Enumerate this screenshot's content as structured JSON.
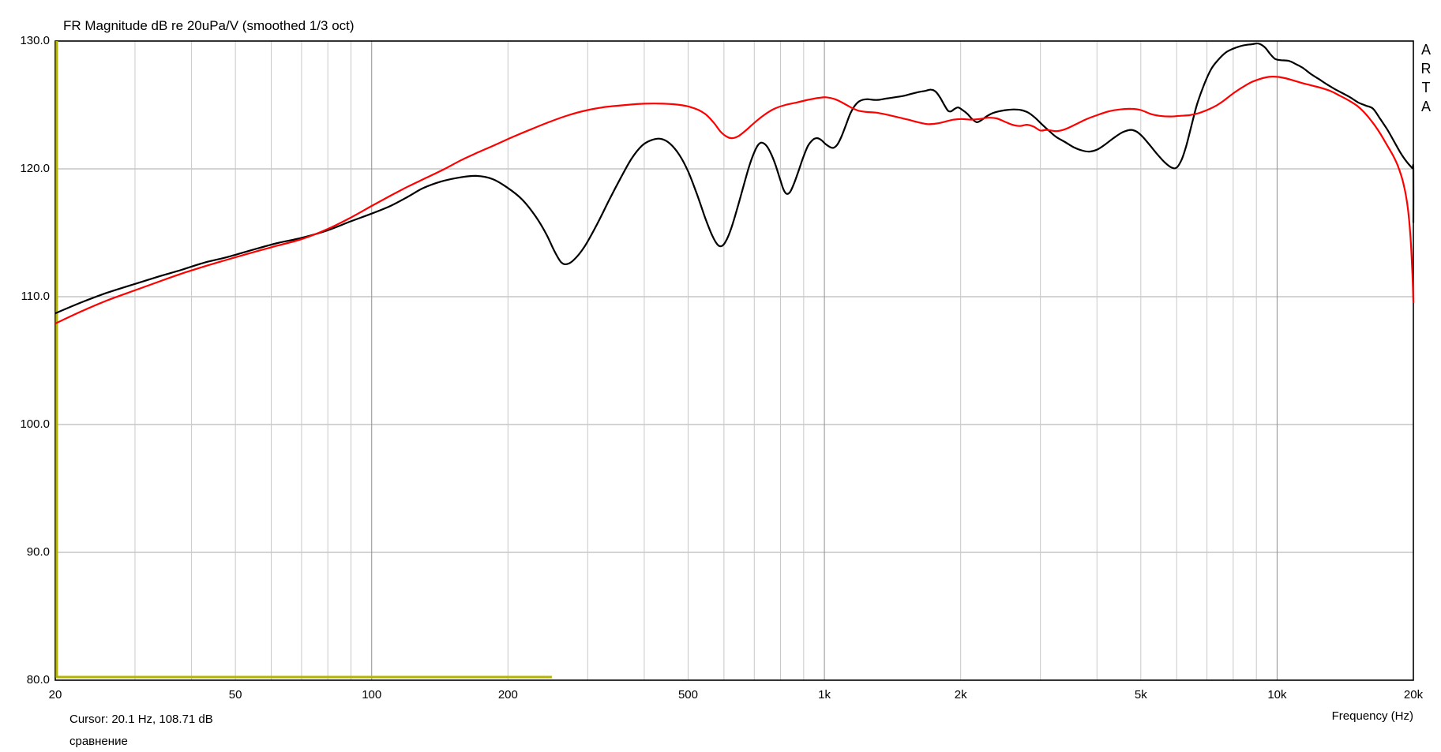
{
  "title": "FR Magnitude dB re 20uPa/V (smoothed 1/3 oct)",
  "watermark": "ARTA",
  "cursor_readout": "Cursor: 20.1 Hz, 108.71 dB",
  "overlay_name": "сравнение",
  "x_axis_label": "Frequency (Hz)",
  "colors": {
    "background": "#ffffff",
    "border": "#000000",
    "grid_horizontal": "#a9a9a9",
    "grid_minor": "#c8c8c8",
    "grid_major": "#8f8f8f",
    "curve_black": "#000000",
    "curve_red": "#ff0000",
    "curve_olive": "#b3b300"
  },
  "chart_data": {
    "type": "line",
    "x_scale": "log",
    "x_range_hz": [
      20,
      20000
    ],
    "y_range_db": [
      80,
      130
    ],
    "grid": true,
    "y_ticks": [
      {
        "value": 130,
        "label": "130.0"
      },
      {
        "value": 120,
        "label": "120.0"
      },
      {
        "value": 110,
        "label": "110.0"
      },
      {
        "value": 100,
        "label": "100.0"
      },
      {
        "value": 90,
        "label": "90.0"
      },
      {
        "value": 80,
        "label": "80.0"
      }
    ],
    "x_ticks_labeled": [
      {
        "hz": 20,
        "label": "20"
      },
      {
        "hz": 50,
        "label": "50"
      },
      {
        "hz": 100,
        "label": "100"
      },
      {
        "hz": 200,
        "label": "200"
      },
      {
        "hz": 500,
        "label": "500"
      },
      {
        "hz": 1000,
        "label": "1k"
      },
      {
        "hz": 2000,
        "label": "2k"
      },
      {
        "hz": 5000,
        "label": "5k"
      },
      {
        "hz": 10000,
        "label": "10k"
      },
      {
        "hz": 20000,
        "label": "20k"
      }
    ],
    "x_gridlines_minor": [
      30,
      40,
      50,
      60,
      70,
      80,
      90,
      200,
      300,
      400,
      500,
      600,
      700,
      800,
      900,
      2000,
      3000,
      4000,
      5000,
      6000,
      7000,
      8000,
      9000
    ],
    "x_gridlines_major": [
      100,
      1000,
      10000
    ],
    "series": [
      {
        "name": "floor-marker-olive",
        "color": "#b3b300",
        "thickness": 3,
        "straight": true,
        "points": [
          [
            20.15,
            130
          ],
          [
            20.15,
            80.25
          ],
          [
            250,
            80.25
          ]
        ]
      },
      {
        "name": "measurement-black",
        "color": "#000000",
        "thickness": 2.2,
        "straight": false,
        "points": [
          [
            20,
            108.7
          ],
          [
            23,
            109.6
          ],
          [
            26,
            110.3
          ],
          [
            30,
            111.0
          ],
          [
            34,
            111.6
          ],
          [
            38,
            112.1
          ],
          [
            43,
            112.7
          ],
          [
            48,
            113.1
          ],
          [
            55,
            113.7
          ],
          [
            62,
            114.2
          ],
          [
            70,
            114.6
          ],
          [
            80,
            115.2
          ],
          [
            90,
            115.9
          ],
          [
            100,
            116.5
          ],
          [
            110,
            117.1
          ],
          [
            120,
            117.8
          ],
          [
            130,
            118.5
          ],
          [
            142,
            119.0
          ],
          [
            155,
            119.3
          ],
          [
            170,
            119.45
          ],
          [
            185,
            119.2
          ],
          [
            200,
            118.5
          ],
          [
            215,
            117.6
          ],
          [
            230,
            116.3
          ],
          [
            243,
            114.9
          ],
          [
            253,
            113.6
          ],
          [
            262,
            112.7
          ],
          [
            270,
            112.55
          ],
          [
            280,
            112.9
          ],
          [
            295,
            113.9
          ],
          [
            315,
            115.7
          ],
          [
            335,
            117.6
          ],
          [
            355,
            119.3
          ],
          [
            375,
            120.8
          ],
          [
            395,
            121.8
          ],
          [
            415,
            122.25
          ],
          [
            435,
            122.35
          ],
          [
            455,
            122.0
          ],
          [
            478,
            121.1
          ],
          [
            500,
            119.8
          ],
          [
            522,
            118.1
          ],
          [
            545,
            116.2
          ],
          [
            565,
            114.8
          ],
          [
            580,
            114.1
          ],
          [
            592,
            113.95
          ],
          [
            605,
            114.3
          ],
          [
            622,
            115.3
          ],
          [
            642,
            116.9
          ],
          [
            662,
            118.6
          ],
          [
            682,
            120.2
          ],
          [
            700,
            121.3
          ],
          [
            715,
            121.9
          ],
          [
            728,
            122.05
          ],
          [
            745,
            121.8
          ],
          [
            762,
            121.2
          ],
          [
            780,
            120.3
          ],
          [
            798,
            119.2
          ],
          [
            812,
            118.4
          ],
          [
            825,
            118.05
          ],
          [
            840,
            118.2
          ],
          [
            858,
            118.9
          ],
          [
            878,
            119.9
          ],
          [
            898,
            120.9
          ],
          [
            920,
            121.8
          ],
          [
            945,
            122.3
          ],
          [
            965,
            122.4
          ],
          [
            985,
            122.25
          ],
          [
            1005,
            121.95
          ],
          [
            1030,
            121.7
          ],
          [
            1048,
            121.65
          ],
          [
            1068,
            121.9
          ],
          [
            1090,
            122.5
          ],
          [
            1115,
            123.4
          ],
          [
            1140,
            124.3
          ],
          [
            1165,
            124.9
          ],
          [
            1190,
            125.25
          ],
          [
            1215,
            125.4
          ],
          [
            1245,
            125.45
          ],
          [
            1280,
            125.4
          ],
          [
            1320,
            125.4
          ],
          [
            1370,
            125.5
          ],
          [
            1430,
            125.6
          ],
          [
            1490,
            125.7
          ],
          [
            1550,
            125.85
          ],
          [
            1610,
            126.0
          ],
          [
            1670,
            126.1
          ],
          [
            1720,
            126.2
          ],
          [
            1760,
            126.05
          ],
          [
            1800,
            125.6
          ],
          [
            1840,
            125.0
          ],
          [
            1875,
            124.55
          ],
          [
            1905,
            124.5
          ],
          [
            1940,
            124.7
          ],
          [
            1975,
            124.8
          ],
          [
            2020,
            124.6
          ],
          [
            2070,
            124.3
          ],
          [
            2120,
            123.9
          ],
          [
            2170,
            123.65
          ],
          [
            2220,
            123.8
          ],
          [
            2280,
            124.1
          ],
          [
            2350,
            124.35
          ],
          [
            2430,
            124.5
          ],
          [
            2520,
            124.6
          ],
          [
            2620,
            124.65
          ],
          [
            2720,
            124.6
          ],
          [
            2820,
            124.4
          ],
          [
            2920,
            124.0
          ],
          [
            3020,
            123.5
          ],
          [
            3130,
            123.0
          ],
          [
            3250,
            122.5
          ],
          [
            3400,
            122.1
          ],
          [
            3550,
            121.7
          ],
          [
            3700,
            121.45
          ],
          [
            3850,
            121.35
          ],
          [
            4000,
            121.5
          ],
          [
            4150,
            121.85
          ],
          [
            4350,
            122.4
          ],
          [
            4550,
            122.85
          ],
          [
            4750,
            123.05
          ],
          [
            4900,
            122.9
          ],
          [
            5050,
            122.5
          ],
          [
            5250,
            121.8
          ],
          [
            5450,
            121.1
          ],
          [
            5650,
            120.5
          ],
          [
            5850,
            120.1
          ],
          [
            6000,
            120.1
          ],
          [
            6150,
            120.7
          ],
          [
            6300,
            121.8
          ],
          [
            6450,
            123.2
          ],
          [
            6650,
            125.0
          ],
          [
            6900,
            126.6
          ],
          [
            7150,
            127.8
          ],
          [
            7400,
            128.5
          ],
          [
            7700,
            129.1
          ],
          [
            8000,
            129.4
          ],
          [
            8400,
            129.65
          ],
          [
            8800,
            129.75
          ],
          [
            9100,
            129.8
          ],
          [
            9400,
            129.5
          ],
          [
            9650,
            129.0
          ],
          [
            9900,
            128.6
          ],
          [
            10200,
            128.5
          ],
          [
            10600,
            128.45
          ],
          [
            11000,
            128.2
          ],
          [
            11400,
            127.9
          ],
          [
            11900,
            127.4
          ],
          [
            12400,
            127.0
          ],
          [
            12900,
            126.6
          ],
          [
            13400,
            126.25
          ],
          [
            13900,
            125.95
          ],
          [
            14500,
            125.6
          ],
          [
            15100,
            125.2
          ],
          [
            15700,
            124.95
          ],
          [
            16300,
            124.7
          ],
          [
            16900,
            123.9
          ],
          [
            17500,
            123.1
          ],
          [
            18100,
            122.2
          ],
          [
            18700,
            121.3
          ],
          [
            19200,
            120.7
          ],
          [
            19600,
            120.3
          ],
          [
            19900,
            120.05
          ],
          [
            20000,
            120.0
          ],
          [
            20000,
            115.8
          ]
        ]
      },
      {
        "name": "overlay-red",
        "color": "#ff0000",
        "thickness": 2.2,
        "straight": false,
        "points": [
          [
            20,
            107.9
          ],
          [
            23,
            108.9
          ],
          [
            26,
            109.7
          ],
          [
            30,
            110.5
          ],
          [
            34,
            111.2
          ],
          [
            38,
            111.8
          ],
          [
            43,
            112.4
          ],
          [
            48,
            112.9
          ],
          [
            55,
            113.5
          ],
          [
            62,
            114.0
          ],
          [
            70,
            114.5
          ],
          [
            80,
            115.3
          ],
          [
            90,
            116.2
          ],
          [
            100,
            117.1
          ],
          [
            110,
            117.9
          ],
          [
            120,
            118.6
          ],
          [
            132,
            119.3
          ],
          [
            145,
            120.0
          ],
          [
            158,
            120.7
          ],
          [
            172,
            121.3
          ],
          [
            188,
            121.9
          ],
          [
            205,
            122.5
          ],
          [
            225,
            123.1
          ],
          [
            248,
            123.7
          ],
          [
            272,
            124.2
          ],
          [
            300,
            124.6
          ],
          [
            330,
            124.85
          ],
          [
            365,
            125.0
          ],
          [
            400,
            125.1
          ],
          [
            440,
            125.1
          ],
          [
            480,
            125.0
          ],
          [
            515,
            124.75
          ],
          [
            545,
            124.3
          ],
          [
            570,
            123.6
          ],
          [
            590,
            122.9
          ],
          [
            610,
            122.5
          ],
          [
            625,
            122.4
          ],
          [
            645,
            122.55
          ],
          [
            670,
            123.0
          ],
          [
            700,
            123.6
          ],
          [
            735,
            124.2
          ],
          [
            775,
            124.7
          ],
          [
            820,
            125.0
          ],
          [
            870,
            125.2
          ],
          [
            920,
            125.4
          ],
          [
            970,
            125.55
          ],
          [
            1010,
            125.6
          ],
          [
            1055,
            125.45
          ],
          [
            1100,
            125.15
          ],
          [
            1145,
            124.8
          ],
          [
            1190,
            124.55
          ],
          [
            1240,
            124.45
          ],
          [
            1300,
            124.4
          ],
          [
            1370,
            124.25
          ],
          [
            1450,
            124.05
          ],
          [
            1530,
            123.85
          ],
          [
            1610,
            123.65
          ],
          [
            1690,
            123.5
          ],
          [
            1770,
            123.55
          ],
          [
            1850,
            123.7
          ],
          [
            1930,
            123.85
          ],
          [
            2010,
            123.9
          ],
          [
            2100,
            123.85
          ],
          [
            2200,
            123.9
          ],
          [
            2300,
            124.0
          ],
          [
            2400,
            123.95
          ],
          [
            2500,
            123.7
          ],
          [
            2600,
            123.45
          ],
          [
            2700,
            123.35
          ],
          [
            2800,
            123.45
          ],
          [
            2900,
            123.3
          ],
          [
            3000,
            123.0
          ],
          [
            3100,
            123.05
          ],
          [
            3250,
            122.95
          ],
          [
            3400,
            123.1
          ],
          [
            3600,
            123.5
          ],
          [
            3800,
            123.9
          ],
          [
            4000,
            124.2
          ],
          [
            4250,
            124.5
          ],
          [
            4500,
            124.65
          ],
          [
            4750,
            124.7
          ],
          [
            5000,
            124.6
          ],
          [
            5250,
            124.3
          ],
          [
            5500,
            124.15
          ],
          [
            5800,
            124.1
          ],
          [
            6100,
            124.15
          ],
          [
            6400,
            124.2
          ],
          [
            6700,
            124.35
          ],
          [
            7000,
            124.6
          ],
          [
            7300,
            124.9
          ],
          [
            7600,
            125.3
          ],
          [
            8000,
            125.9
          ],
          [
            8400,
            126.4
          ],
          [
            8800,
            126.8
          ],
          [
            9200,
            127.05
          ],
          [
            9600,
            127.2
          ],
          [
            10000,
            127.2
          ],
          [
            10400,
            127.1
          ],
          [
            10900,
            126.9
          ],
          [
            11400,
            126.7
          ],
          [
            12000,
            126.5
          ],
          [
            12600,
            126.3
          ],
          [
            13200,
            126.05
          ],
          [
            13800,
            125.7
          ],
          [
            14400,
            125.35
          ],
          [
            15000,
            124.95
          ],
          [
            15600,
            124.4
          ],
          [
            16200,
            123.7
          ],
          [
            16800,
            122.9
          ],
          [
            17400,
            122.0
          ],
          [
            18000,
            121.1
          ],
          [
            18500,
            120.2
          ],
          [
            19000,
            118.9
          ],
          [
            19400,
            117.2
          ],
          [
            19700,
            114.8
          ],
          [
            19900,
            111.8
          ],
          [
            20000,
            109.5
          ]
        ]
      }
    ]
  }
}
